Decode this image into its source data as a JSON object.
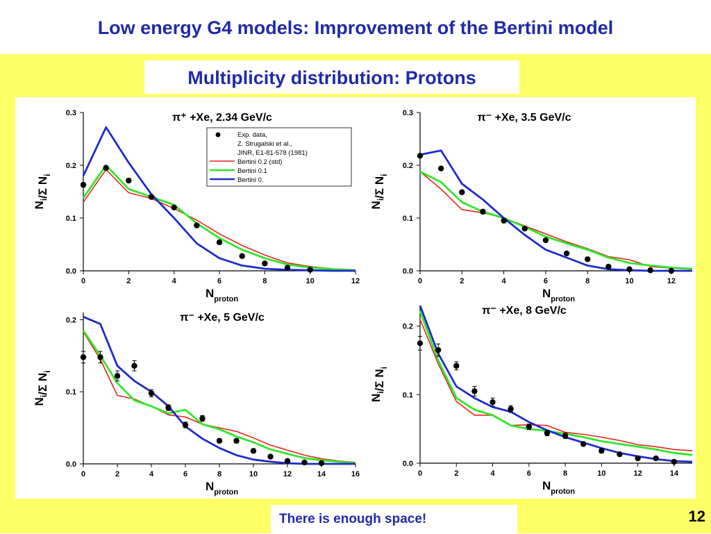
{
  "slide": {
    "title": "Low energy G4 models: Improvement of the Bertini model",
    "subtitle": "Multiplicity distribution: Protons",
    "note": "There is enough space!",
    "page_number": "12"
  },
  "colors": {
    "exp": "#000000",
    "std": "#e8231d",
    "v01": "#2ee82b",
    "v0": "#1c2bcc",
    "title": "#1f2ba8",
    "background": "#ffff66"
  },
  "legend": [
    "Exp. data,",
    "Z. Strugalski et al.,",
    "JINR, E1-81-578 (1981)",
    "Bertini 0.2 (std)",
    "Bertini 0.1",
    "Bertini 0."
  ],
  "chart_data": [
    {
      "type": "line",
      "title": "π⁺ +Xe, 2.34 GeV/c",
      "xlabel": "Nproton",
      "ylabel": "Ni/Σ Ni",
      "xlim": [
        0,
        12
      ],
      "ylim": [
        0,
        0.3
      ],
      "xticks": [
        "0",
        "2",
        "4",
        "6",
        "8",
        "10",
        "12"
      ],
      "yticks": [
        "0.0",
        "0.1",
        "0.2",
        "0.3"
      ],
      "legend_position": "top-right",
      "exp": {
        "x": [
          0,
          1,
          2,
          3,
          4,
          5,
          6,
          7,
          8,
          9,
          10
        ],
        "y": [
          0.163,
          0.195,
          0.171,
          0.14,
          0.12,
          0.086,
          0.054,
          0.028,
          0.014,
          0.006,
          0.002
        ],
        "err": [
          0.004,
          0.004,
          0.004,
          0.004,
          0.003,
          0.003,
          0.003,
          0.002,
          0.002,
          0.001,
          0.001
        ]
      },
      "series": [
        {
          "name": "Bertini 0.2 (std)",
          "x": [
            0,
            1,
            2,
            3,
            4,
            5,
            6,
            7,
            8,
            9,
            10,
            11,
            12
          ],
          "y": [
            0.13,
            0.192,
            0.148,
            0.137,
            0.118,
            0.096,
            0.07,
            0.048,
            0.03,
            0.015,
            0.008,
            0.004,
            0.002
          ]
        },
        {
          "name": "Bertini 0.1",
          "x": [
            0,
            1,
            2,
            3,
            4,
            5,
            6,
            7,
            8,
            9,
            10,
            11,
            12
          ],
          "y": [
            0.138,
            0.2,
            0.155,
            0.14,
            0.125,
            0.09,
            0.062,
            0.04,
            0.024,
            0.012,
            0.006,
            0.003,
            0.001
          ]
        },
        {
          "name": "Bertini 0.",
          "x": [
            0,
            1,
            2,
            3,
            4,
            5,
            6,
            7,
            8,
            9,
            10,
            11,
            12
          ],
          "y": [
            0.18,
            0.272,
            0.205,
            0.145,
            0.1,
            0.052,
            0.024,
            0.01,
            0.004,
            0.002,
            0.001,
            0.0,
            0.0
          ]
        }
      ]
    },
    {
      "type": "line",
      "title": "π⁻ +Xe, 3.5 GeV/c",
      "xlabel": "Nproton",
      "ylabel": "Ni/Σ Ni",
      "xlim": [
        0,
        13
      ],
      "ylim": [
        0,
        0.3
      ],
      "xticks": [
        "0",
        "2",
        "4",
        "6",
        "8",
        "10",
        "12"
      ],
      "yticks": [
        "0.0",
        "0.1",
        "0.2",
        "0.3"
      ],
      "exp": {
        "x": [
          0,
          1,
          2,
          3,
          4,
          5,
          6,
          7,
          8,
          9,
          10,
          11,
          12
        ],
        "y": [
          0.218,
          0.194,
          0.149,
          0.112,
          0.095,
          0.08,
          0.058,
          0.033,
          0.022,
          0.008,
          0.003,
          0.001,
          0.0
        ],
        "err": [
          0.003,
          0.003,
          0.003,
          0.004,
          0.004,
          0.003,
          0.003,
          0.002,
          0.002,
          0.002,
          0.001,
          0.001,
          0.001
        ]
      },
      "series": [
        {
          "name": "Bertini 0.2 (std)",
          "x": [
            0,
            1,
            2,
            3,
            4,
            5,
            6,
            7,
            8,
            9,
            10,
            11,
            12,
            13
          ],
          "y": [
            0.188,
            0.155,
            0.116,
            0.11,
            0.1,
            0.085,
            0.07,
            0.055,
            0.042,
            0.027,
            0.021,
            0.008,
            0.005,
            0.003
          ]
        },
        {
          "name": "Bertini 0.1",
          "x": [
            0,
            1,
            2,
            3,
            4,
            5,
            6,
            7,
            8,
            9,
            10,
            11,
            12,
            13
          ],
          "y": [
            0.188,
            0.168,
            0.13,
            0.112,
            0.1,
            0.083,
            0.065,
            0.052,
            0.04,
            0.025,
            0.015,
            0.01,
            0.006,
            0.004
          ]
        },
        {
          "name": "Bertini 0.",
          "x": [
            0,
            1,
            2,
            3,
            4,
            5,
            6,
            7,
            8,
            9,
            10,
            11,
            12,
            13
          ],
          "y": [
            0.22,
            0.228,
            0.165,
            0.135,
            0.1,
            0.068,
            0.04,
            0.025,
            0.01,
            0.003,
            0.001,
            0.0,
            0.0,
            0.0
          ]
        }
      ]
    },
    {
      "type": "line",
      "title": "π⁻ +Xe, 5 GeV/c",
      "xlabel": "Nproton",
      "ylabel": "Ni/Σ Ni",
      "xlim": [
        0,
        16
      ],
      "ylim": [
        0,
        0.21
      ],
      "xticks": [
        "0",
        "2",
        "4",
        "6",
        "8",
        "10",
        "12",
        "14",
        "16"
      ],
      "yticks": [
        "0.0",
        "0.1",
        "0.2"
      ],
      "exp": {
        "x": [
          0,
          1,
          2,
          3,
          4,
          5,
          6,
          7,
          8,
          9,
          10,
          11,
          12,
          13,
          14
        ],
        "y": [
          0.148,
          0.148,
          0.122,
          0.136,
          0.098,
          0.078,
          0.054,
          0.063,
          0.032,
          0.032,
          0.018,
          0.01,
          0.004,
          0.002,
          0.001
        ],
        "err": [
          0.008,
          0.008,
          0.007,
          0.007,
          0.005,
          0.004,
          0.004,
          0.004,
          0.003,
          0.003,
          0.003,
          0.002,
          0.001,
          0.001,
          0.001
        ]
      },
      "series": [
        {
          "name": "Bertini 0.2 (std)",
          "x": [
            0,
            1,
            2,
            3,
            4,
            5,
            6,
            7,
            8,
            9,
            10,
            11,
            12,
            13,
            14,
            15,
            16
          ],
          "y": [
            0.183,
            0.145,
            0.095,
            0.09,
            0.08,
            0.068,
            0.065,
            0.055,
            0.05,
            0.045,
            0.036,
            0.026,
            0.019,
            0.012,
            0.007,
            0.004,
            0.002
          ]
        },
        {
          "name": "Bertini 0.1",
          "x": [
            0,
            1,
            2,
            3,
            4,
            5,
            6,
            7,
            8,
            9,
            10,
            11,
            12,
            13,
            14,
            15,
            16
          ],
          "y": [
            0.185,
            0.15,
            0.112,
            0.088,
            0.08,
            0.07,
            0.075,
            0.055,
            0.048,
            0.038,
            0.03,
            0.02,
            0.014,
            0.008,
            0.005,
            0.003,
            0.001
          ]
        },
        {
          "name": "Bertini 0.",
          "x": [
            0,
            1,
            2,
            3,
            4,
            5,
            6,
            7,
            8,
            9,
            10,
            11,
            12,
            13,
            14,
            15,
            16
          ],
          "y": [
            0.204,
            0.194,
            0.136,
            0.115,
            0.1,
            0.08,
            0.052,
            0.035,
            0.022,
            0.012,
            0.006,
            0.003,
            0.001,
            0.0,
            0.0,
            0.0,
            0.0
          ]
        }
      ]
    },
    {
      "type": "line",
      "title": "π⁻ +Xe, 8 GeV/c",
      "xlabel": "Nproton",
      "ylabel": "Ni/Σ Ni",
      "xlim": [
        0,
        15
      ],
      "ylim": [
        0,
        0.23
      ],
      "xticks": [
        "0",
        "2",
        "4",
        "6",
        "8",
        "10",
        "12",
        "14"
      ],
      "yticks": [
        "0.0",
        "0.1",
        "0.2"
      ],
      "exp": {
        "x": [
          0,
          1,
          2,
          3,
          4,
          5,
          6,
          7,
          8,
          9,
          10,
          11,
          12,
          13,
          14
        ],
        "y": [
          0.175,
          0.165,
          0.142,
          0.105,
          0.089,
          0.079,
          0.053,
          0.044,
          0.04,
          0.028,
          0.018,
          0.013,
          0.007,
          0.007,
          0.002
        ],
        "err": [
          0.01,
          0.009,
          0.006,
          0.007,
          0.006,
          0.005,
          0.004,
          0.004,
          0.004,
          0.003,
          0.003,
          0.002,
          0.002,
          0.002,
          0.001
        ]
      },
      "series": [
        {
          "name": "Bertini 0.2 (std)",
          "x": [
            0,
            1,
            2,
            3,
            4,
            5,
            6,
            7,
            8,
            9,
            10,
            11,
            12,
            13,
            14,
            15
          ],
          "y": [
            0.21,
            0.145,
            0.09,
            0.07,
            0.07,
            0.055,
            0.056,
            0.055,
            0.045,
            0.042,
            0.038,
            0.033,
            0.027,
            0.024,
            0.02,
            0.018
          ]
        },
        {
          "name": "Bertini 0.1",
          "x": [
            0,
            1,
            2,
            3,
            4,
            5,
            6,
            7,
            8,
            9,
            10,
            11,
            12,
            13,
            14,
            15
          ],
          "y": [
            0.222,
            0.15,
            0.095,
            0.078,
            0.07,
            0.055,
            0.05,
            0.047,
            0.043,
            0.038,
            0.032,
            0.028,
            0.024,
            0.02,
            0.015,
            0.012
          ]
        },
        {
          "name": "Bertini 0.",
          "x": [
            0,
            1,
            2,
            3,
            4,
            5,
            6,
            7,
            8,
            9,
            10,
            11,
            12,
            13,
            14,
            15
          ],
          "y": [
            0.23,
            0.16,
            0.112,
            0.095,
            0.082,
            0.075,
            0.06,
            0.048,
            0.038,
            0.03,
            0.022,
            0.015,
            0.01,
            0.006,
            0.003,
            0.002
          ]
        }
      ]
    }
  ]
}
